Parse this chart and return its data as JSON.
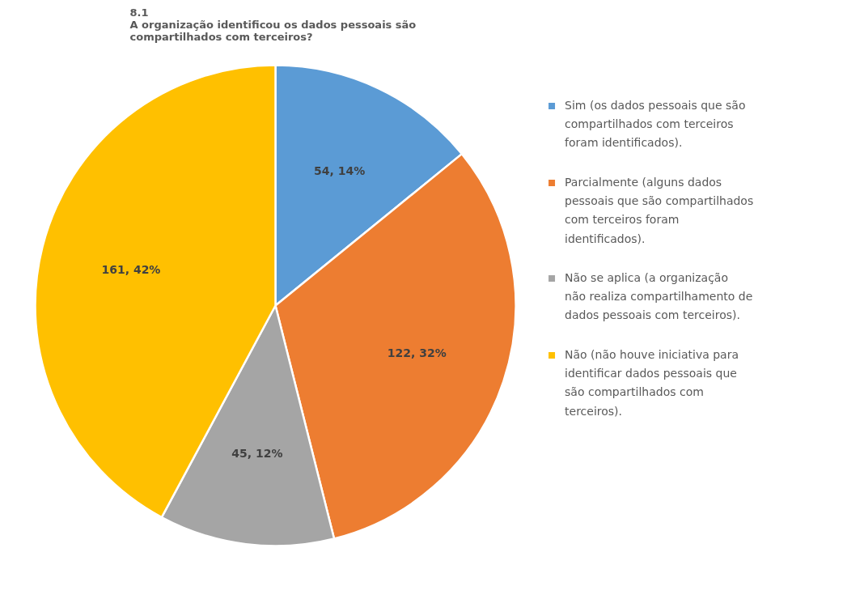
{
  "chart_data": {
    "type": "pie",
    "title": "8.1\nA organização identificou os dados pessoais são\ncompartilhados com terceiros?",
    "categories": [
      "Sim (os dados pessoais que são compartilhados com terceiros foram identificados).",
      "Parcialmente (alguns dados pessoais que são compartilhados com terceiros foram identificados).",
      "Não se aplica (a organização não realiza compartilhamento de dados pessoais com terceiros).",
      "Não (não houve iniciativa para identificar dados pessoais que são compartilhados com terceiros)."
    ],
    "values": [
      54,
      122,
      45,
      161
    ],
    "colors": [
      "#5b9bd5",
      "#ed7d31",
      "#a5a5a5",
      "#ffc000"
    ],
    "value_labels": [
      "54, 14%",
      "122, 32%",
      "45, 12%",
      "161, 42%"
    ],
    "legend": "right"
  }
}
